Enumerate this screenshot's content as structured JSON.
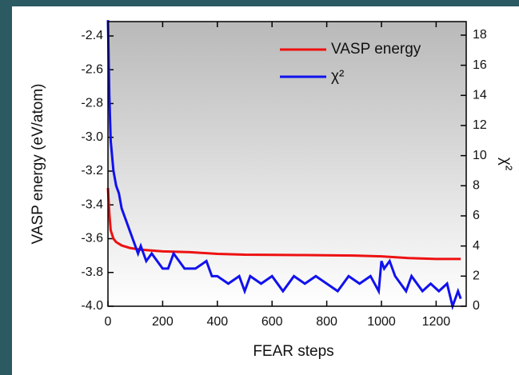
{
  "chart_data": {
    "type": "line",
    "xlabel": "FEAR steps",
    "ylabel": "VASP energy (eV/atom)",
    "y2label": "χ²",
    "xlim": [
      0,
      1310
    ],
    "xticks": [
      0,
      200,
      400,
      600,
      800,
      1000,
      1200
    ],
    "ylim": [
      -4.0,
      -2.315
    ],
    "yticks": [
      {
        "value": -4.0,
        "label": "-4.0"
      },
      {
        "value": -3.8,
        "label": "-3.8"
      },
      {
        "value": -3.6,
        "label": "-3.6"
      },
      {
        "value": -3.4,
        "label": "-3.4"
      },
      {
        "value": -3.2,
        "label": "-3.2"
      },
      {
        "value": -3.0,
        "label": "-3.0"
      },
      {
        "value": -2.8,
        "label": "-2.8"
      },
      {
        "value": -2.6,
        "label": "-2.6"
      },
      {
        "value": -2.4,
        "label": "-2.4"
      }
    ],
    "y2lim": [
      0,
      18.9
    ],
    "y2ticks": [
      0,
      2,
      4,
      6,
      8,
      10,
      12,
      14,
      16,
      18
    ],
    "legend": "upper right",
    "series": [
      {
        "name": "VASP energy",
        "color": "#ee1111",
        "x": [
          0,
          5,
          10,
          20,
          30,
          50,
          80,
          120,
          200,
          300,
          400,
          500,
          700,
          900,
          1000,
          1100,
          1200,
          1290
        ],
        "values": [
          -3.3,
          -3.45,
          -3.55,
          -3.6,
          -3.62,
          -3.64,
          -3.655,
          -3.665,
          -3.675,
          -3.68,
          -3.69,
          -3.695,
          -3.697,
          -3.7,
          -3.705,
          -3.715,
          -3.72,
          -3.72
        ]
      },
      {
        "name": "χ²",
        "color": "#1111ee",
        "axis": "y2",
        "x": [
          0,
          5,
          10,
          15,
          20,
          30,
          40,
          50,
          60,
          70,
          80,
          90,
          100,
          110,
          120,
          140,
          160,
          180,
          200,
          220,
          240,
          280,
          320,
          360,
          380,
          400,
          440,
          480,
          500,
          520,
          560,
          600,
          640,
          680,
          720,
          760,
          800,
          840,
          880,
          920,
          960,
          990,
          1000,
          1010,
          1030,
          1050,
          1070,
          1090,
          1110,
          1150,
          1180,
          1210,
          1240,
          1260,
          1280,
          1290
        ],
        "values": [
          19,
          14,
          11,
          10,
          9,
          8,
          7.5,
          6.5,
          6,
          5.5,
          5,
          4.5,
          4,
          3.5,
          4,
          3,
          3.5,
          3,
          2.5,
          2.5,
          3.5,
          2.5,
          2.5,
          3,
          2,
          2,
          1.5,
          2,
          1,
          2,
          1.5,
          2,
          1,
          2,
          1.5,
          2,
          1.5,
          1,
          2,
          1.5,
          2,
          1,
          3,
          2.5,
          3,
          2,
          1.5,
          1,
          2,
          1,
          1.5,
          1,
          1.5,
          0,
          1,
          0.5
        ]
      }
    ]
  }
}
